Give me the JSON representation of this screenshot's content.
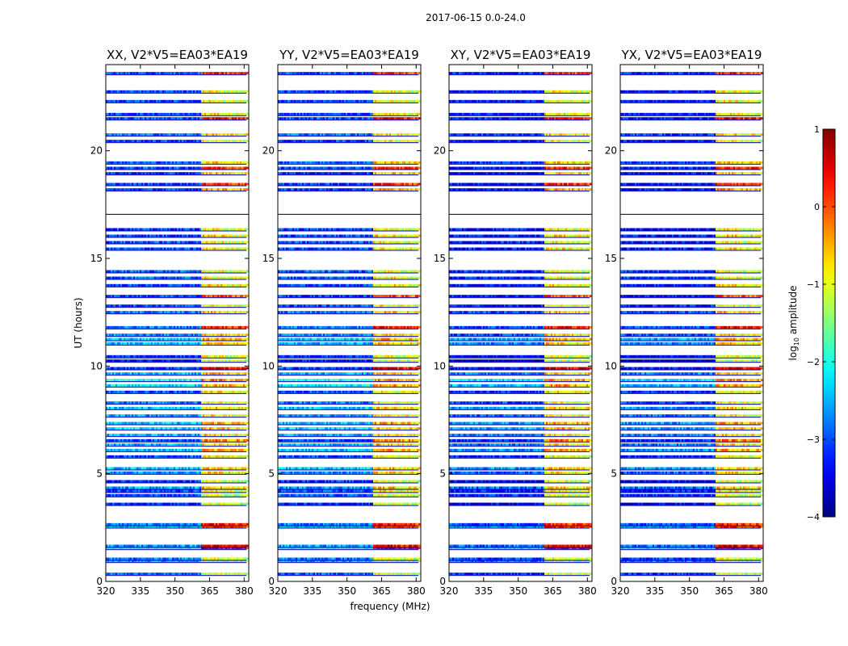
{
  "chart_data": {
    "type": "heatmap",
    "suptitle": "2017-06-15 0.0-24.0",
    "xlabel": "frequency (MHz)",
    "ylabel": "UT (hours)",
    "xlim": [
      320,
      382
    ],
    "ylim": [
      0,
      24
    ],
    "x_ticks": [
      320,
      335,
      350,
      365,
      380
    ],
    "y_ticks": [
      0,
      5,
      10,
      15,
      20
    ],
    "panels": [
      {
        "title": "XX, V2*V5=EA03*EA19"
      },
      {
        "title": "YY, V2*V5=EA03*EA19"
      },
      {
        "title": "XY, V2*V5=EA03*EA19"
      },
      {
        "title": "YX, V2*V5=EA03*EA19"
      }
    ],
    "colorbar": {
      "label_prefix": "log",
      "label_sub": "10",
      "label_suffix": " amplitude",
      "min": -4,
      "max": 1,
      "ticks": [
        1,
        0,
        -1,
        -2,
        -3,
        -4
      ],
      "colormap": "jet"
    },
    "observed_bands_mhz": [
      [
        320,
        361
      ],
      [
        361,
        371
      ],
      [
        371,
        381
      ]
    ],
    "scan_rows_ut": [
      {
        "t": 0.35,
        "base": -2.9,
        "band": -1.0
      },
      {
        "t": 0.95,
        "base": -2.5,
        "band": -1.2
      },
      {
        "t": 1.05,
        "base": -2.8,
        "band": -1.0
      },
      {
        "t": 1.55,
        "base": -1.8,
        "band": 0.6
      },
      {
        "t": 1.65,
        "base": -2.6,
        "band": 0.5
      },
      {
        "t": 2.55,
        "base": -2.3,
        "band": 0.2
      },
      {
        "t": 2.65,
        "base": -2.8,
        "band": 0.3
      },
      {
        "t": 3.6,
        "base": -3.2,
        "band": -1.1
      },
      {
        "t": 4.0,
        "base": -3.0,
        "band": -1.0
      },
      {
        "t": 4.2,
        "base": -3.0,
        "band": -0.8
      },
      {
        "t": 4.35,
        "base": -2.6,
        "band": -0.6
      },
      {
        "t": 4.65,
        "base": -3.2,
        "band": -1.0
      },
      {
        "t": 5.05,
        "base": -2.7,
        "band": -0.7
      },
      {
        "t": 5.25,
        "base": -2.4,
        "band": -0.6
      },
      {
        "t": 5.8,
        "base": -3.0,
        "band": -0.9
      },
      {
        "t": 6.1,
        "base": -2.4,
        "band": -0.4
      },
      {
        "t": 6.35,
        "base": -2.5,
        "band": -0.6
      },
      {
        "t": 6.55,
        "base": -3.0,
        "band": -0.2
      },
      {
        "t": 6.8,
        "base": -2.5,
        "band": -0.7
      },
      {
        "t": 7.1,
        "base": -2.3,
        "band": -0.5
      },
      {
        "t": 7.35,
        "base": -2.4,
        "band": -0.4
      },
      {
        "t": 7.7,
        "base": -2.6,
        "band": -0.8
      },
      {
        "t": 8.05,
        "base": -2.4,
        "band": -0.6
      },
      {
        "t": 8.3,
        "base": -2.8,
        "band": -0.9
      },
      {
        "t": 8.8,
        "base": -3.0,
        "band": -0.8
      },
      {
        "t": 9.1,
        "base": -2.2,
        "band": -0.4
      },
      {
        "t": 9.35,
        "base": -2.0,
        "band": -0.3
      },
      {
        "t": 9.65,
        "base": -2.5,
        "band": -0.6
      },
      {
        "t": 9.9,
        "base": -3.1,
        "band": 0.6
      },
      {
        "t": 10.25,
        "base": -3.4,
        "band": -1.1
      },
      {
        "t": 10.45,
        "base": -3.2,
        "band": -1.0
      },
      {
        "t": 11.05,
        "base": -2.5,
        "band": -0.6
      },
      {
        "t": 11.25,
        "base": -2.3,
        "band": -0.5
      },
      {
        "t": 11.45,
        "base": -2.7,
        "band": -0.7
      },
      {
        "t": 11.8,
        "base": -2.8,
        "band": 0.4
      },
      {
        "t": 12.5,
        "base": -2.8,
        "band": -0.6
      },
      {
        "t": 12.8,
        "base": -3.0,
        "band": -0.9
      },
      {
        "t": 13.25,
        "base": -3.1,
        "band": 0.1
      },
      {
        "t": 13.75,
        "base": -3.1,
        "band": -0.8
      },
      {
        "t": 14.1,
        "base": -2.9,
        "band": -0.9
      },
      {
        "t": 14.4,
        "base": -2.9,
        "band": -1.0
      },
      {
        "t": 15.45,
        "base": -3.0,
        "band": -0.8
      },
      {
        "t": 15.75,
        "base": -3.0,
        "band": -0.9
      },
      {
        "t": 16.05,
        "base": -3.0,
        "band": -0.7
      },
      {
        "t": 16.35,
        "base": -3.1,
        "band": -0.9
      },
      {
        "t": 18.2,
        "base": -3.1,
        "band": -0.4
      },
      {
        "t": 18.45,
        "base": -3.1,
        "band": 0.3
      },
      {
        "t": 18.95,
        "base": -3.2,
        "band": -0.6
      },
      {
        "t": 19.2,
        "base": -3.0,
        "band": 0.3
      },
      {
        "t": 19.45,
        "base": -2.9,
        "band": -0.6
      },
      {
        "t": 20.45,
        "base": -3.1,
        "band": -0.9
      },
      {
        "t": 20.75,
        "base": -2.8,
        "band": -0.7
      },
      {
        "t": 21.5,
        "base": -3.0,
        "band": 0.5
      },
      {
        "t": 21.7,
        "base": -3.1,
        "band": -0.8
      },
      {
        "t": 22.3,
        "base": -3.1,
        "band": -0.9
      },
      {
        "t": 22.75,
        "base": -3.1,
        "band": -0.9
      },
      {
        "t": 23.6,
        "base": -3.0,
        "band": 0.3
      }
    ]
  }
}
